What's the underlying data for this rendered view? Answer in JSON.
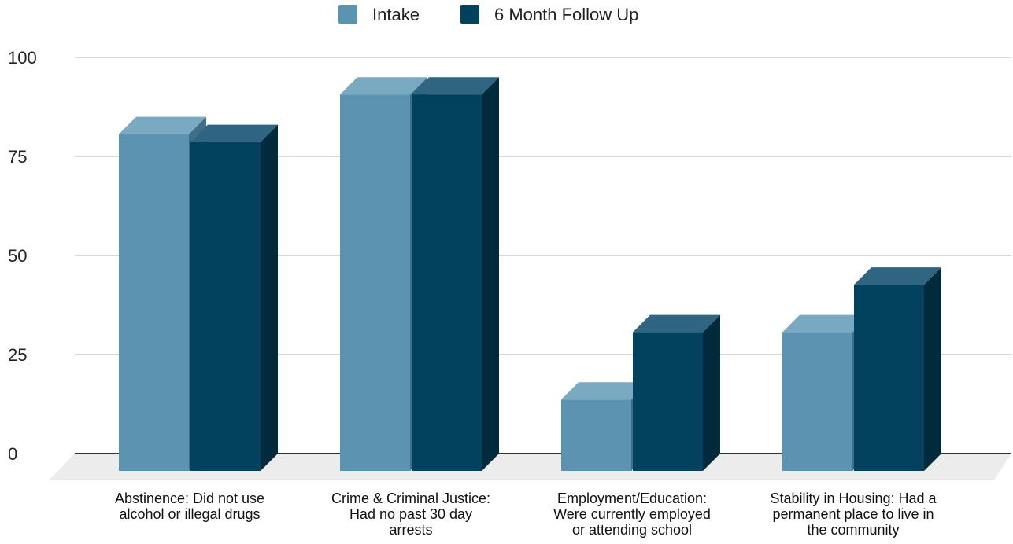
{
  "chart_data": {
    "type": "bar",
    "categories": [
      [
        "Abstinence: Did not use",
        "alcohol or illegal drugs"
      ],
      [
        "Crime & Criminal Justice:",
        "Had no past 30 day",
        "arrests"
      ],
      [
        "Employment/Education:",
        "Were currently employed",
        "or attending school"
      ],
      [
        "Stability in Housing: Had a",
        "permanent place to live in",
        "the community"
      ]
    ],
    "series": [
      {
        "name": "Intake",
        "values": [
          85,
          95,
          18,
          35
        ]
      },
      {
        "name": "6 Month Follow Up",
        "values": [
          83,
          95,
          35,
          47
        ]
      }
    ],
    "ylim": [
      0,
      100
    ],
    "yticks": [
      "0",
      "25",
      "50",
      "75",
      "100"
    ],
    "grid": true,
    "legend": "top-center",
    "colors": {
      "intake_front": "#5b93b1",
      "intake_top": "#7aa9c2",
      "intake_side": "#3f6f88",
      "followup_front": "#03425f",
      "followup_top": "#2f6580",
      "followup_side": "#012a3c",
      "floor": "#ececec",
      "grid": "#cccccc",
      "axis": "#333333"
    }
  }
}
